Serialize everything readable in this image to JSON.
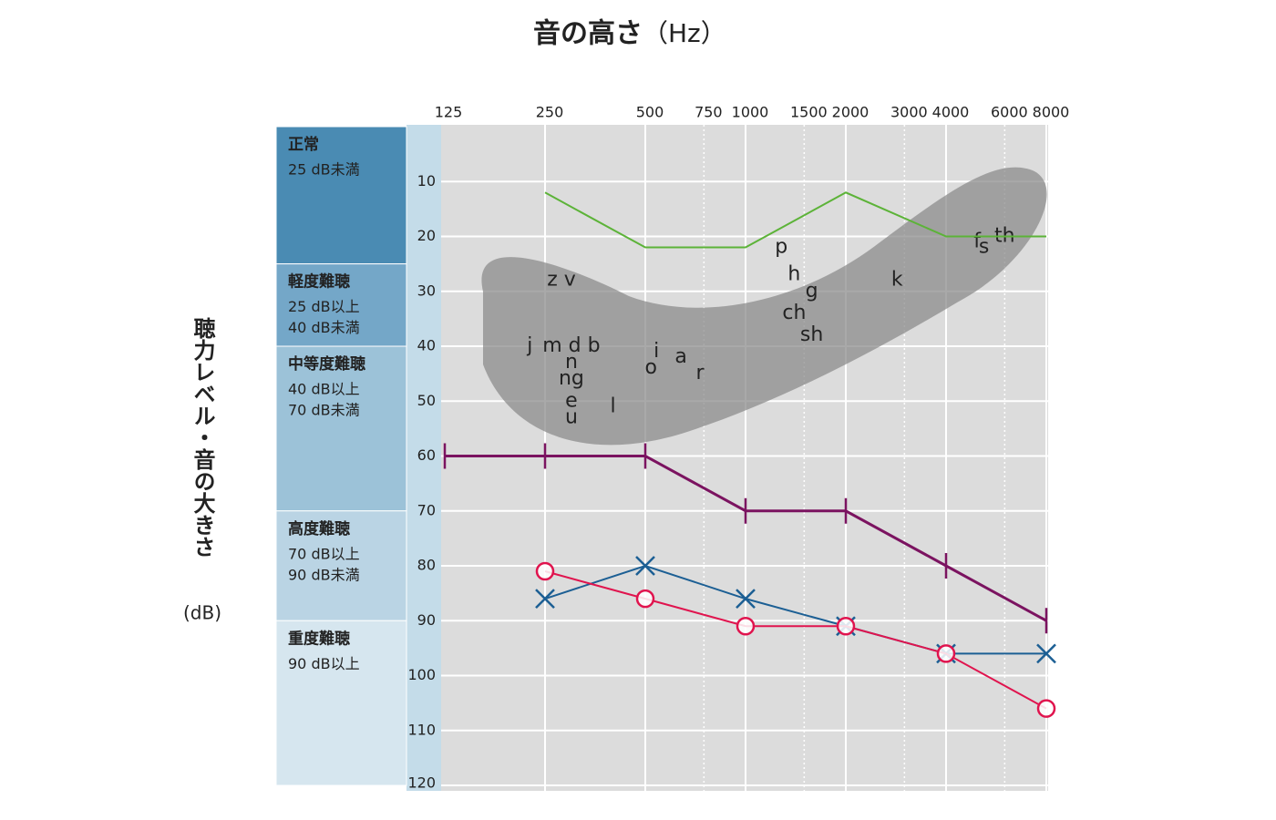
{
  "chart_data": {
    "type": "line",
    "title": "音の高さ",
    "title_unit": "（Hz）",
    "ylabel": "聴力レベル・音の大きさ",
    "ylabel_unit": "(dB)",
    "xscale": "log",
    "xlim": [
      125,
      8000
    ],
    "xticks": [
      125,
      250,
      500,
      750,
      1000,
      1500,
      2000,
      3000,
      4000,
      6000,
      8000
    ],
    "xticks_minor": [
      750,
      1500,
      3000,
      6000
    ],
    "ylim": [
      0,
      120
    ],
    "yinverted": true,
    "yticks": [
      10,
      20,
      30,
      40,
      50,
      60,
      70,
      80,
      90,
      100,
      110,
      120
    ],
    "grid": true,
    "bands": [
      {
        "label": "正常",
        "desc": [
          "25 dB未満"
        ],
        "from": 0,
        "to": 25,
        "color": "#4a8bb3",
        "text_color": "#ffffff"
      },
      {
        "label": "軽度難聴",
        "desc": [
          "25 dB以上",
          "40 dB未満"
        ],
        "from": 25,
        "to": 40,
        "color": "#74a7c8",
        "text_color": "#222222"
      },
      {
        "label": "中等度難聴",
        "desc": [
          "40 dB以上",
          "70 dB未満"
        ],
        "from": 40,
        "to": 70,
        "color": "#9cc2d8",
        "text_color": "#222222"
      },
      {
        "label": "高度難聴",
        "desc": [
          "70 dB以上",
          "90 dB未満"
        ],
        "from": 70,
        "to": 90,
        "color": "#bad4e4",
        "text_color": "#222222"
      },
      {
        "label": "重度難聴",
        "desc": [
          "90 dB以上"
        ],
        "from": 90,
        "to": 120,
        "color": "#d6e6ef",
        "text_color": "#222222"
      }
    ],
    "series": [
      {
        "color": "#5cb338",
        "marker": "none",
        "x": [
          250,
          500,
          1000,
          2000,
          4000,
          8000
        ],
        "values": [
          12,
          22,
          22,
          12,
          20,
          20
        ]
      },
      {
        "color": "#7b1360",
        "marker": "tick",
        "x": [
          125,
          250,
          500,
          1000,
          2000,
          4000,
          8000
        ],
        "values": [
          60,
          60,
          60,
          70,
          70,
          80,
          90
        ]
      },
      {
        "color": "#1c5f94",
        "marker": "x",
        "x": [
          250,
          500,
          1000,
          2000,
          4000,
          8000
        ],
        "values": [
          86,
          80,
          86,
          91,
          96,
          96
        ]
      },
      {
        "color": "#e0144e",
        "marker": "circle",
        "x": [
          250,
          500,
          1000,
          2000,
          4000,
          8000
        ],
        "values": [
          81,
          86,
          91,
          91,
          96,
          106
        ]
      }
    ],
    "phonemes": [
      {
        "label": "z v",
        "x": 280,
        "y": 28
      },
      {
        "label": "j",
        "x": 225,
        "y": 40
      },
      {
        "label": "m d b",
        "x": 300,
        "y": 40
      },
      {
        "label": "n",
        "x": 300,
        "y": 43
      },
      {
        "label": "ng",
        "x": 300,
        "y": 46
      },
      {
        "label": "e",
        "x": 300,
        "y": 50
      },
      {
        "label": "u",
        "x": 300,
        "y": 53
      },
      {
        "label": "l",
        "x": 400,
        "y": 51
      },
      {
        "label": "o",
        "x": 520,
        "y": 44
      },
      {
        "label": "i",
        "x": 540,
        "y": 41
      },
      {
        "label": "a",
        "x": 640,
        "y": 42
      },
      {
        "label": "r",
        "x": 730,
        "y": 45
      },
      {
        "label": "p",
        "x": 1280,
        "y": 22
      },
      {
        "label": "h",
        "x": 1400,
        "y": 27
      },
      {
        "label": "g",
        "x": 1580,
        "y": 30
      },
      {
        "label": "ch",
        "x": 1400,
        "y": 34
      },
      {
        "label": "sh",
        "x": 1580,
        "y": 38
      },
      {
        "label": "k",
        "x": 2850,
        "y": 28
      },
      {
        "label": "f",
        "x": 4960,
        "y": 21
      },
      {
        "label": "s",
        "x": 5200,
        "y": 22
      },
      {
        "label": "th",
        "x": 6000,
        "y": 20
      }
    ]
  }
}
